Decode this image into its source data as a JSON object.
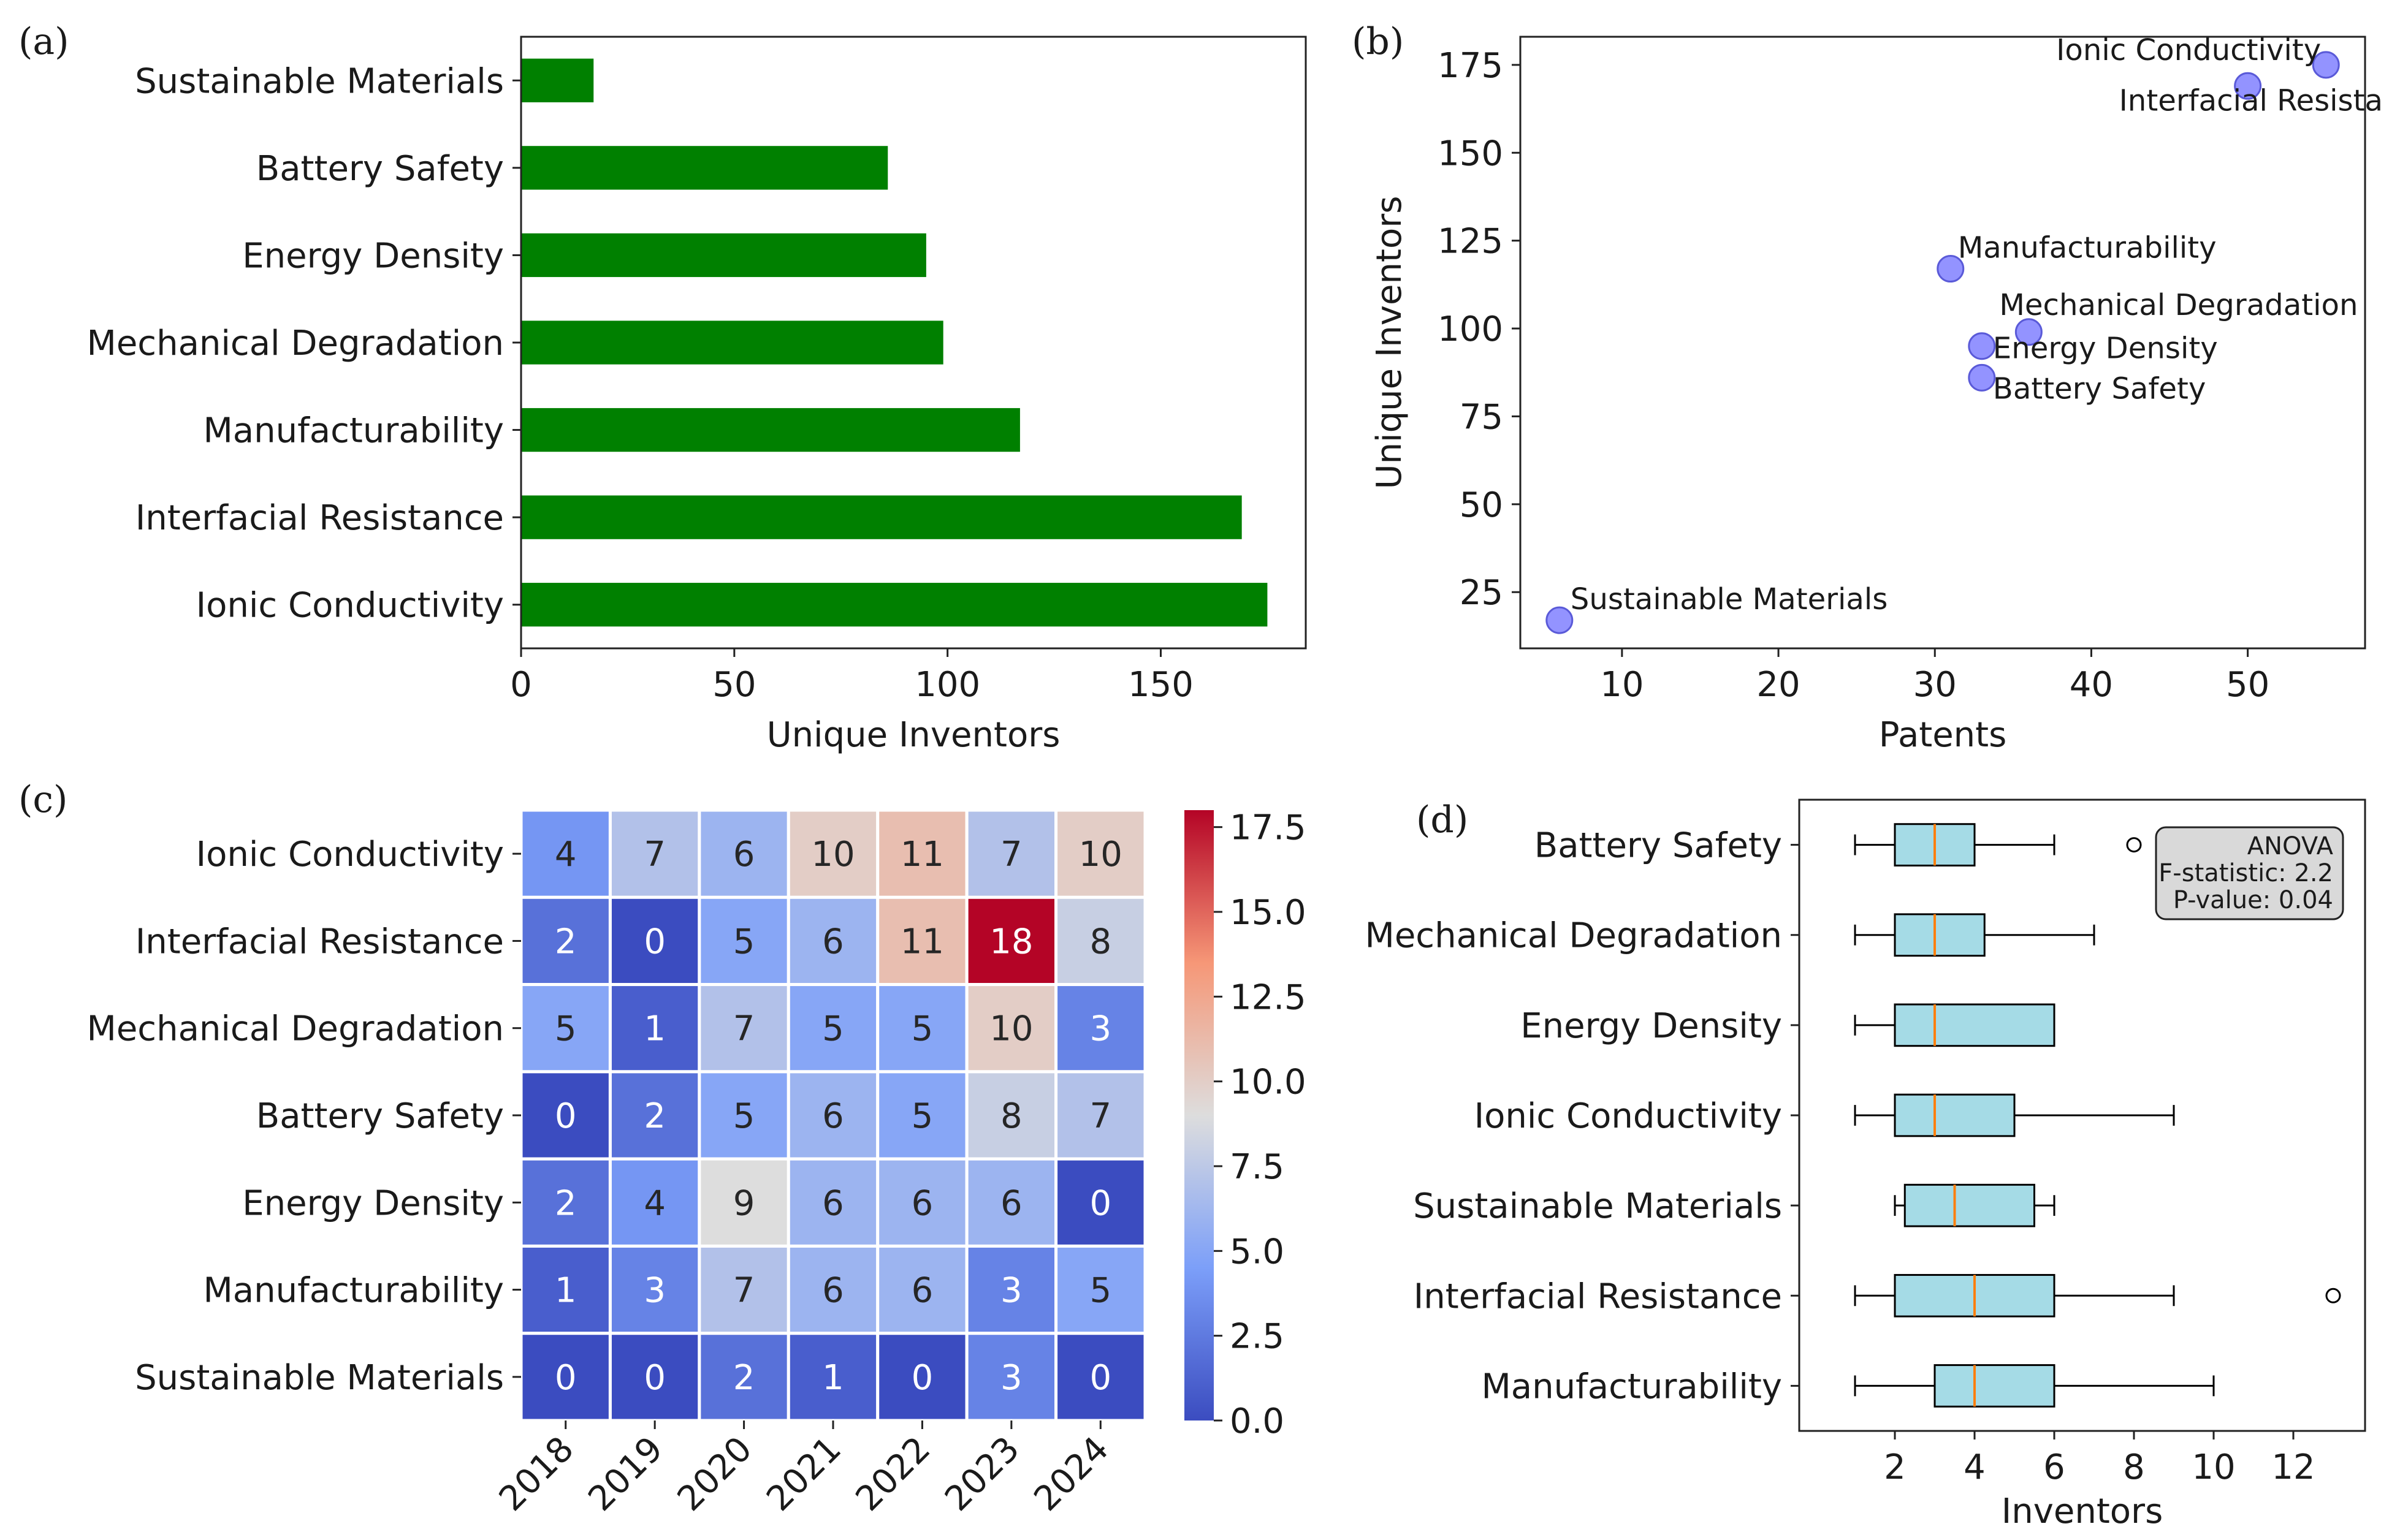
{
  "panel_labels": [
    "(a)",
    "(b)",
    "(c)",
    "(d)"
  ],
  "chart_data": [
    {
      "panel": "(a)",
      "type": "bar",
      "orientation": "horizontal",
      "categories": [
        "Sustainable Materials",
        "Battery Safety",
        "Energy Density",
        "Mechanical Degradation",
        "Manufacturability",
        "Interfacial Resistance",
        "Ionic Conductivity"
      ],
      "values": [
        17,
        86,
        95,
        99,
        117,
        169,
        175
      ],
      "xlabel": "Unique Inventors",
      "xlim": [
        0,
        184
      ],
      "xticks": [
        0,
        50,
        100,
        150
      ],
      "bar_color": "#008000"
    },
    {
      "panel": "(b)",
      "type": "scatter",
      "points": [
        {
          "label": "Ionic Conductivity",
          "x": 55,
          "y": 175
        },
        {
          "label": "Interfacial Resistance",
          "x": 50,
          "y": 169
        },
        {
          "label": "Manufacturability",
          "x": 31,
          "y": 117
        },
        {
          "label": "Mechanical Degradation",
          "x": 36,
          "y": 99
        },
        {
          "label": "Energy Density",
          "x": 33,
          "y": 95
        },
        {
          "label": "Battery Safety",
          "x": 33,
          "y": 86
        },
        {
          "label": "Sustainable Materials",
          "x": 6,
          "y": 17
        }
      ],
      "xlabel": "Patents",
      "ylabel": "Unique Inventors",
      "xlim": [
        3.5,
        57.5
      ],
      "ylim": [
        9,
        183
      ],
      "xticks": [
        10,
        20,
        30,
        40,
        50
      ],
      "yticks": [
        25,
        50,
        75,
        100,
        125,
        150,
        175
      ],
      "marker_color": "#8080ff"
    },
    {
      "panel": "(c)",
      "type": "heatmap",
      "rows": [
        "Ionic Conductivity",
        "Interfacial Resistance",
        "Mechanical Degradation",
        "Battery Safety",
        "Energy Density",
        "Manufacturability",
        "Sustainable Materials"
      ],
      "columns": [
        "2018",
        "2019",
        "2020",
        "2021",
        "2022",
        "2023",
        "2024"
      ],
      "values": [
        [
          4,
          7,
          6,
          10,
          11,
          7,
          10
        ],
        [
          2,
          0,
          5,
          6,
          11,
          18,
          8
        ],
        [
          5,
          1,
          7,
          5,
          5,
          10,
          3
        ],
        [
          0,
          2,
          5,
          6,
          5,
          8,
          7
        ],
        [
          2,
          4,
          9,
          6,
          6,
          6,
          0
        ],
        [
          1,
          3,
          7,
          6,
          6,
          3,
          5
        ],
        [
          0,
          0,
          2,
          1,
          0,
          3,
          0
        ]
      ],
      "colormap": "coolwarm",
      "vmin": 0,
      "vmax": 18,
      "colorbar_ticks": [
        "0.0",
        "2.5",
        "5.0",
        "7.5",
        "10.0",
        "12.5",
        "15.0",
        "17.5"
      ]
    },
    {
      "panel": "(d)",
      "type": "boxplot",
      "categories": [
        "Battery Safety",
        "Mechanical Degradation",
        "Energy Density",
        "Ionic Conductivity",
        "Sustainable Materials",
        "Interfacial Resistance",
        "Manufacturability"
      ],
      "boxes": [
        {
          "whislo": 1,
          "q1": 2,
          "med": 3,
          "q3": 4,
          "whishi": 6,
          "fliers": [
            8
          ]
        },
        {
          "whislo": 1,
          "q1": 2,
          "med": 3,
          "q3": 4.25,
          "whishi": 7,
          "fliers": []
        },
        {
          "whislo": 1,
          "q1": 2,
          "med": 3,
          "q3": 6,
          "whishi": 6,
          "fliers": []
        },
        {
          "whislo": 1,
          "q1": 2,
          "med": 3,
          "q3": 5,
          "whishi": 9,
          "fliers": []
        },
        {
          "whislo": 2,
          "q1": 2.25,
          "med": 3.5,
          "q3": 5.5,
          "whishi": 6,
          "fliers": []
        },
        {
          "whislo": 1,
          "q1": 2,
          "med": 4,
          "q3": 6,
          "whishi": 9,
          "fliers": [
            13
          ]
        },
        {
          "whislo": 1,
          "q1": 3,
          "med": 4,
          "q3": 6,
          "whishi": 10,
          "fliers": []
        }
      ],
      "xlabel": "Inventors",
      "xlim": [
        -0.4,
        13.8
      ],
      "xticks": [
        2,
        4,
        6,
        8,
        10,
        12
      ],
      "box_color": "#a5dbe6",
      "median_color": "#ff7f0e",
      "annotation": [
        "ANOVA",
        "F-statistic: 2.2",
        "P-value: 0.04"
      ]
    }
  ]
}
